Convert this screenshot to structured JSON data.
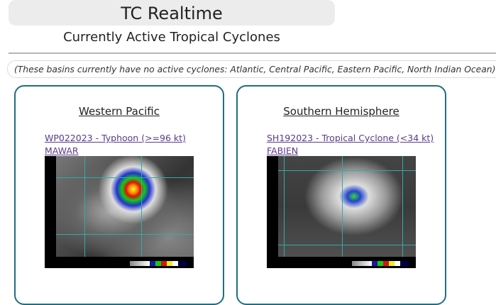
{
  "header": {
    "title": "TC Realtime",
    "subtitle": "Currently Active Tropical Cyclones"
  },
  "notice": "(These basins currently have no active cyclones: Atlantic, Central Pacific, Eastern Pacific, North Indian Ocean)",
  "basins": [
    {
      "name": "Western Pacific",
      "storm_line1": "WP022023 - Typhoon (>=96 kt)",
      "storm_line2": "MAWAR"
    },
    {
      "name": "Southern Hemisphere",
      "storm_line1": "SH192023 - Tropical Cyclone (<34 kt)",
      "storm_line2": "FABIEN"
    }
  ],
  "colors": {
    "card_border": "#1f6e82",
    "link": "#5a3a8a",
    "title_bg": "#ececec"
  }
}
